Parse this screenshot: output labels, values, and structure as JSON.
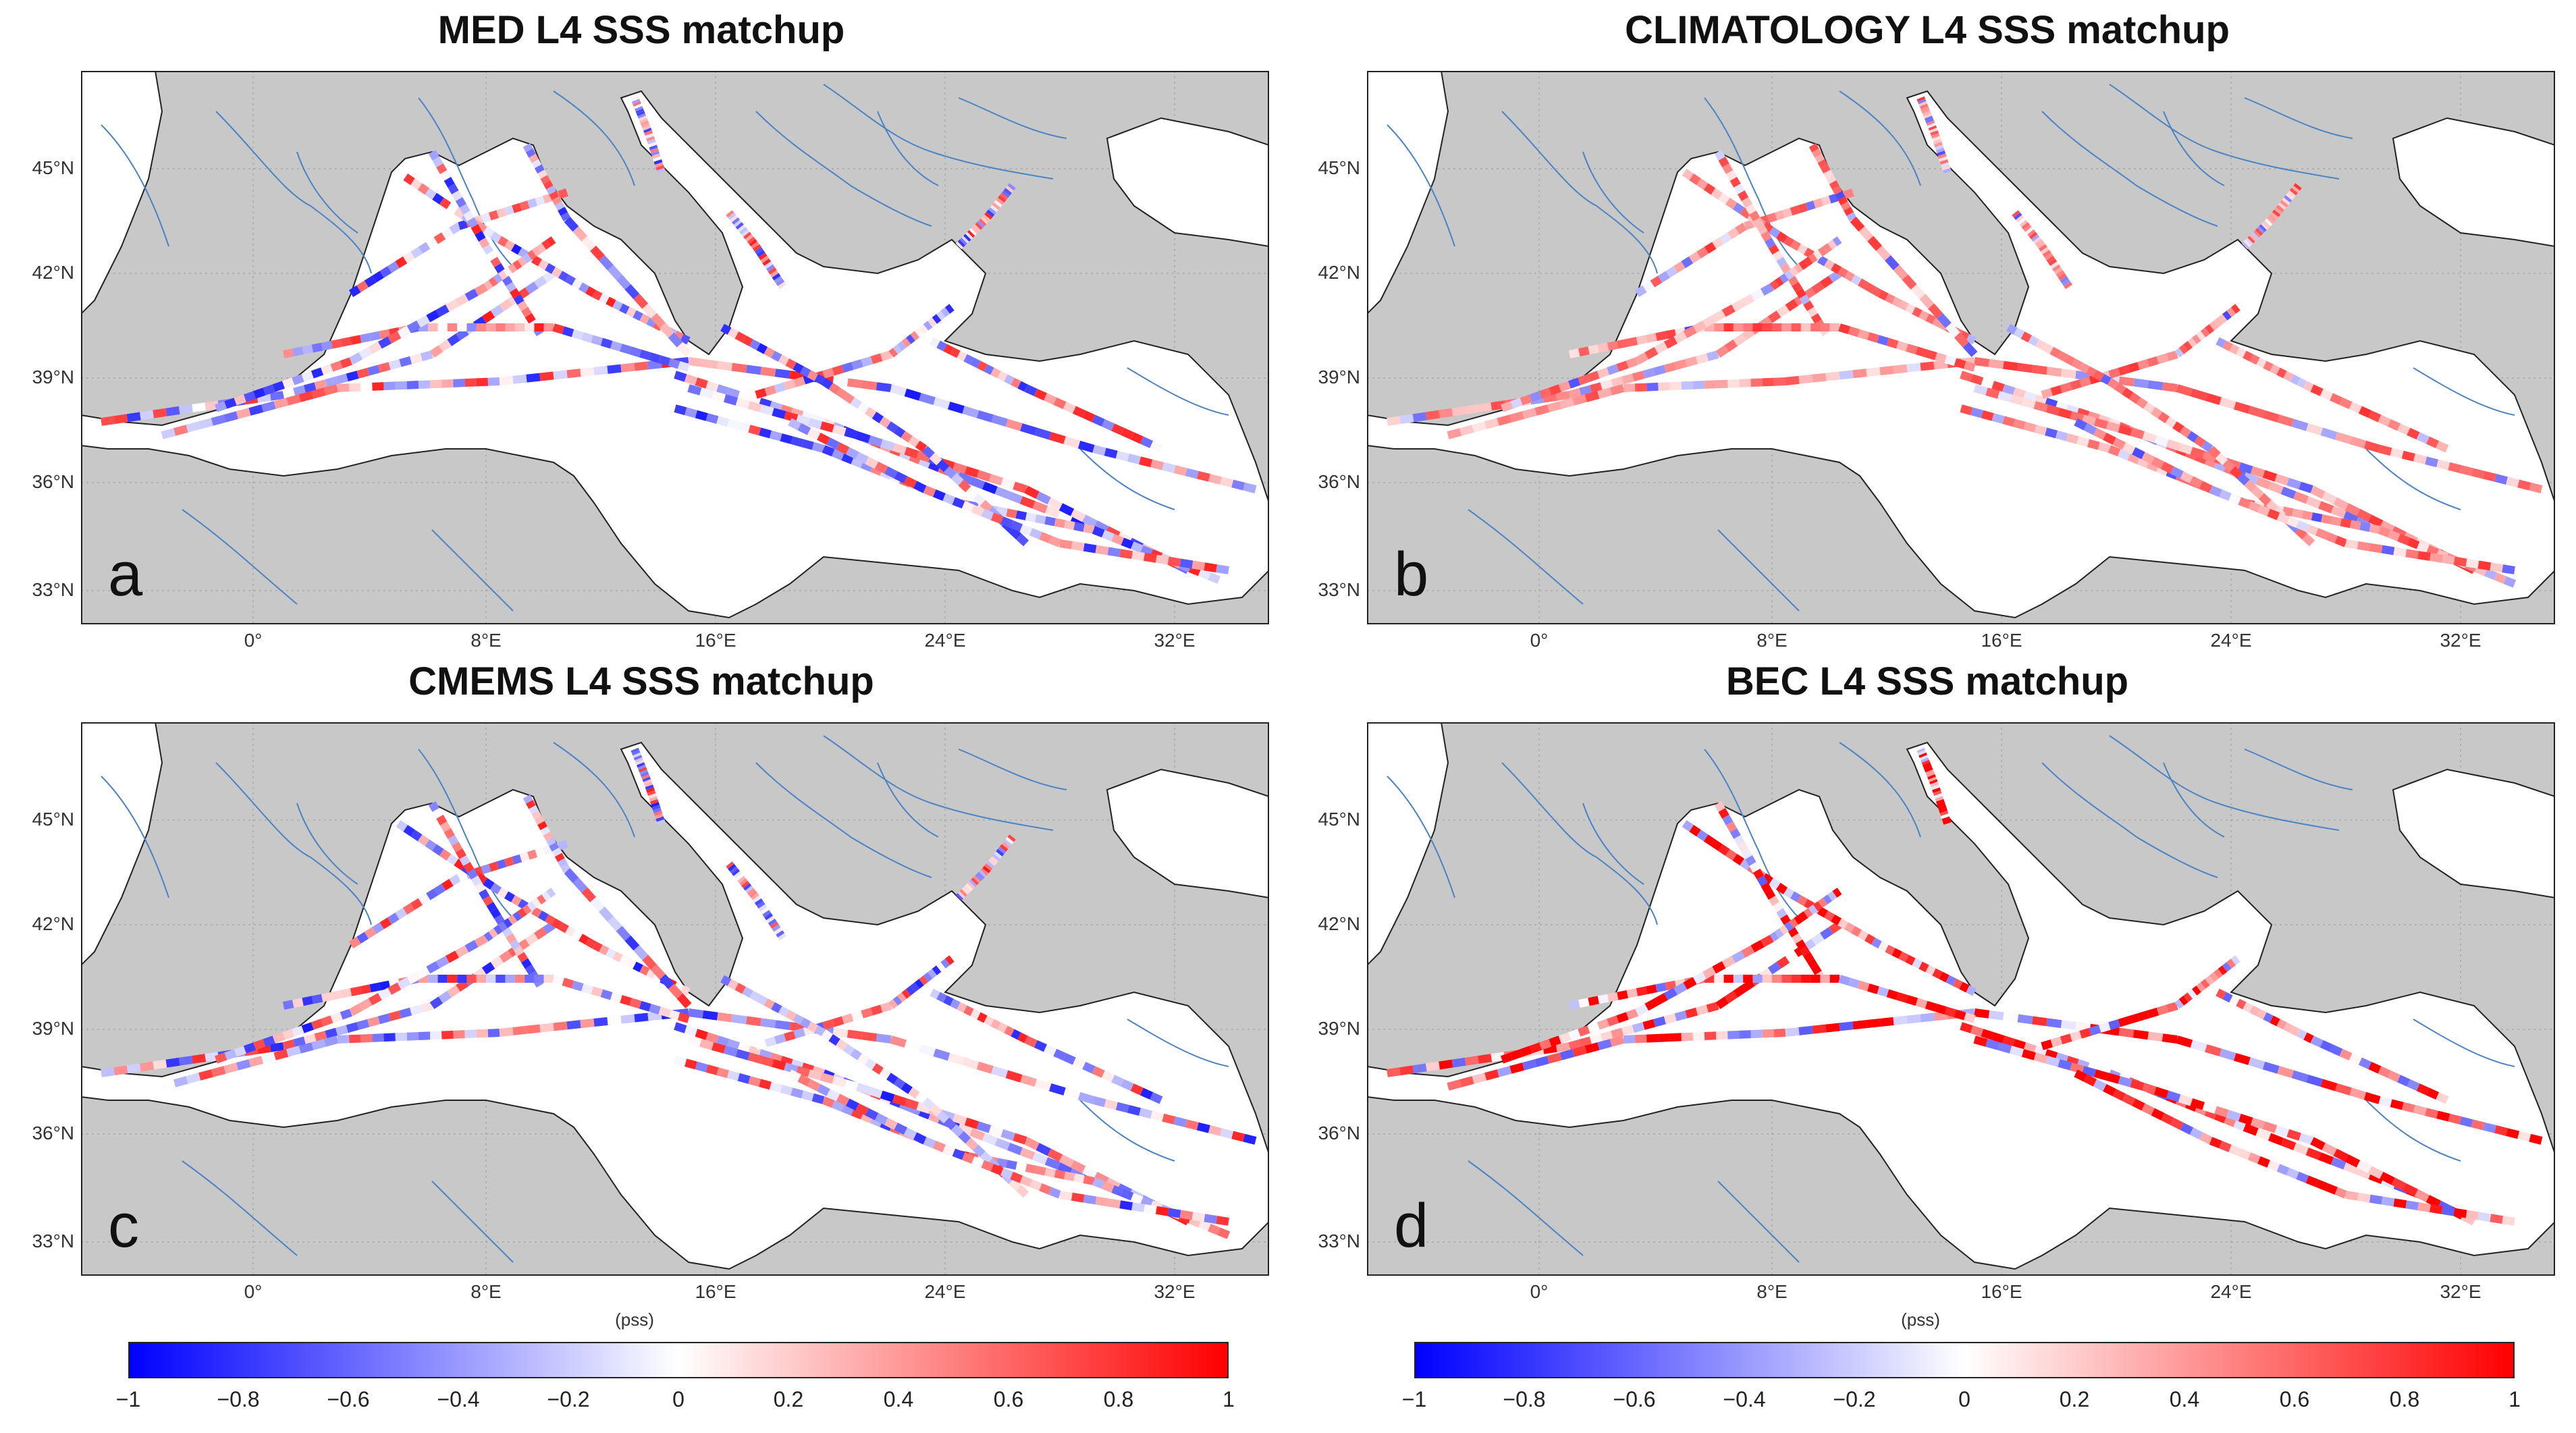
{
  "panels": [
    {
      "id": "a",
      "title": "MED L4 SSS matchup",
      "letter": "a",
      "lat_labels": [
        "45°N",
        "42°N",
        "39°N",
        "36°N",
        "33°N"
      ],
      "lon_labels": [
        "0°",
        "8°E",
        "16°E",
        "24°E",
        "32°E"
      ],
      "bias": "mixed"
    },
    {
      "id": "b",
      "title": "CLIMATOLOGY L4 SSS matchup",
      "letter": "b",
      "lat_labels": [
        "45°N",
        "42°N",
        "39°N",
        "36°N",
        "33°N"
      ],
      "lon_labels": [
        "0°",
        "8°E",
        "16°E",
        "24°E",
        "32°E"
      ],
      "bias": "positive"
    },
    {
      "id": "c",
      "title": "CMEMS L4 SSS matchup",
      "letter": "c",
      "lat_labels": [
        "45°N",
        "42°N",
        "39°N",
        "36°N",
        "33°N"
      ],
      "lon_labels": [
        "0°",
        "8°E",
        "16°E",
        "24°E",
        "32°E"
      ],
      "bias": "mixed"
    },
    {
      "id": "d",
      "title": "BEC L4 SSS matchup",
      "letter": "d",
      "lat_labels": [
        "45°N",
        "42°N",
        "39°N",
        "36°N",
        "33°N"
      ],
      "lon_labels": [
        "0°",
        "8°E",
        "16°E",
        "24°E",
        "32°E"
      ],
      "bias": "strong"
    }
  ],
  "colorbars": [
    {
      "unit": "(pss)",
      "ticks": [
        "−1",
        "−0.8",
        "−0.6",
        "−0.4",
        "−0.2",
        "0",
        "0.2",
        "0.4",
        "0.6",
        "0.8",
        "1"
      ],
      "min_color": "#0000ff",
      "mid_color": "#ffffff",
      "max_color": "#ff0000"
    },
    {
      "unit": "(pss)",
      "ticks": [
        "−1",
        "−0.8",
        "−0.6",
        "−0.4",
        "−0.2",
        "0",
        "0.2",
        "0.4",
        "0.6",
        "0.8",
        "1"
      ],
      "min_color": "#0000ff",
      "mid_color": "#ffffff",
      "max_color": "#ff0000"
    }
  ],
  "colors": {
    "land": "#c8c8c8",
    "sea": "#ffffff",
    "river": "#4a84c4",
    "coast": "#222222"
  }
}
